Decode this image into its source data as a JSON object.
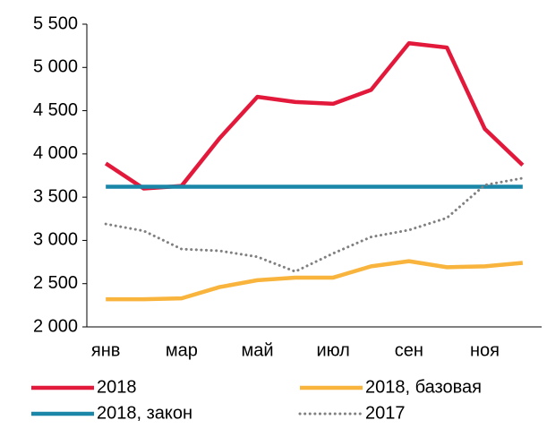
{
  "chart_data": {
    "type": "line",
    "categories": [
      "янв",
      null,
      "мар",
      null,
      "май",
      null,
      "июл",
      null,
      "сен",
      null,
      "ноя",
      null
    ],
    "series": [
      {
        "name": "2018",
        "color": "#e3193b",
        "style": "solid",
        "values": [
          3890,
          3600,
          3630,
          4180,
          4660,
          4600,
          4580,
          4740,
          5280,
          5230,
          4290,
          3870
        ]
      },
      {
        "name": "2018, базовая",
        "color": "#f8b43c",
        "style": "solid",
        "values": [
          2320,
          2320,
          2330,
          2460,
          2540,
          2570,
          2570,
          2700,
          2760,
          2690,
          2700,
          2740
        ]
      },
      {
        "name": "2018, закон",
        "color": "#1a86a8",
        "style": "solid",
        "values": [
          3620,
          3620,
          3620,
          3620,
          3620,
          3620,
          3620,
          3620,
          3620,
          3620,
          3620,
          3620
        ]
      },
      {
        "name": "2017",
        "color": "#808080",
        "style": "dotted",
        "values": [
          3190,
          3110,
          2900,
          2880,
          2810,
          2640,
          2850,
          3040,
          3120,
          3260,
          3640,
          3720
        ]
      }
    ],
    "ylim": [
      2000,
      5500
    ],
    "yticks": [
      {
        "value": 2000,
        "label": "2 000"
      },
      {
        "value": 2500,
        "label": "2 500"
      },
      {
        "value": 3000,
        "label": "3 000"
      },
      {
        "value": 3500,
        "label": "3 500"
      },
      {
        "value": 4000,
        "label": "4 000"
      },
      {
        "value": 4500,
        "label": "4 500"
      },
      {
        "value": 5000,
        "label": "5 000"
      },
      {
        "value": 5500,
        "label": "5 500"
      }
    ],
    "grid": false
  }
}
